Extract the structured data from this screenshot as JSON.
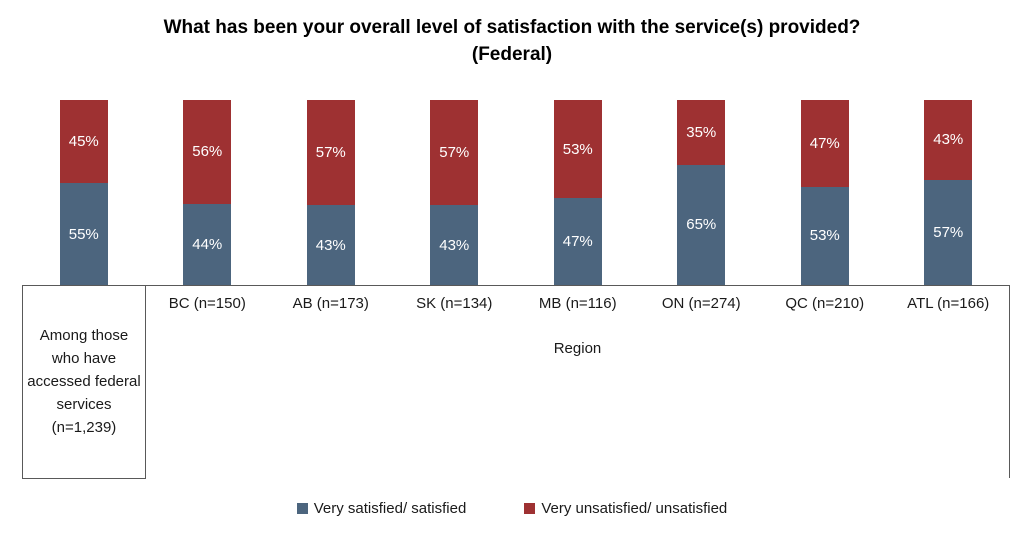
{
  "title": {
    "line1": "What has been your overall level of satisfaction with the service(s) provided?",
    "line2": "(Federal)"
  },
  "chart_data": {
    "type": "bar",
    "subtype": "stacked-100-percent",
    "orientation": "vertical",
    "grid": false,
    "legend_position": "bottom",
    "categories": [
      "Among those who have accessed federal services (n=1,239)",
      "BC (n=150)",
      "AB (n=173)",
      "SK (n=134)",
      "MB (n=116)",
      "ON (n=274)",
      "QC (n=210)",
      "ATL (n=166)"
    ],
    "group_label": "Region",
    "ylim": [
      0,
      100
    ],
    "value_suffix": "%",
    "series": [
      {
        "name": "Very satisfied/ satisfied",
        "color": "#4C657E",
        "values": [
          55,
          44,
          43,
          43,
          47,
          65,
          53,
          57
        ]
      },
      {
        "name": "Very unsatisfied/ unsatisfied",
        "color": "#9E3132",
        "values": [
          45,
          56,
          57,
          57,
          53,
          35,
          47,
          43
        ]
      }
    ]
  }
}
